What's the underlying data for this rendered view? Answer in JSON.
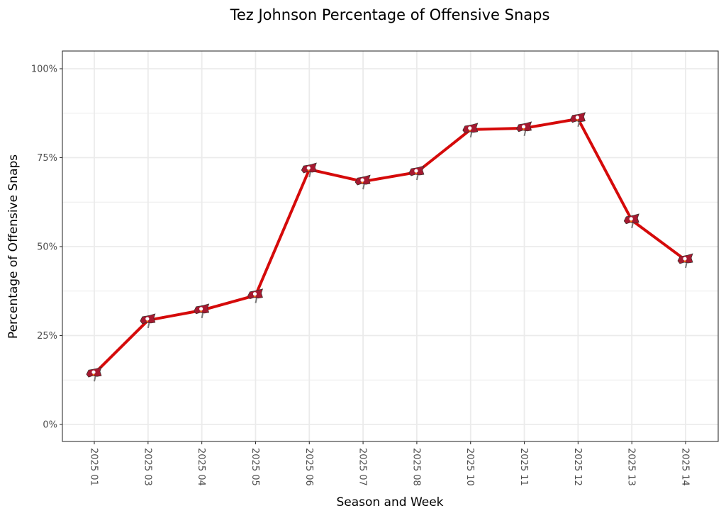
{
  "chart_data": {
    "type": "line",
    "title": "Tez Johnson Percentage of Offensive Snaps",
    "xlabel": "Season and Week",
    "ylabel": "Percentage of Offensive Snaps",
    "categories": [
      "2025 01",
      "2025 03",
      "2025 04",
      "2025 05",
      "2025 06",
      "2025 07",
      "2025 08",
      "2025 10",
      "2025 11",
      "2025 12",
      "2025 13",
      "2025 14"
    ],
    "series": [
      {
        "name": "Tez Johnson",
        "values": [
          14.3,
          29.3,
          32.1,
          36.3,
          71.7,
          68.3,
          70.9,
          82.9,
          83.3,
          85.9,
          57.4,
          46.2
        ],
        "color": "#d50a0a",
        "marker": "buccaneers-flag-logo"
      }
    ],
    "ylim": [
      -4.9,
      104.9
    ],
    "yticks": [
      0,
      25,
      50,
      75,
      100
    ],
    "ytick_labels": [
      "0%",
      "25%",
      "50%",
      "75%",
      "100%"
    ],
    "grid": true,
    "legend": "none",
    "colors": {
      "line": "#d50a0a",
      "flag": "#a71930",
      "flag_dark": "#34302b",
      "pewter": "#7a7a7a",
      "grid": "#ebebeb",
      "border": "#333333"
    }
  }
}
